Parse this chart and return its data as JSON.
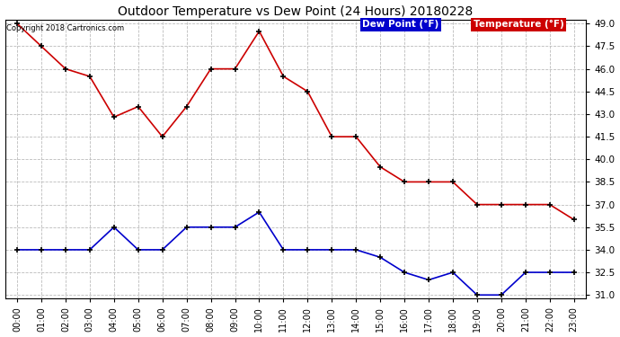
{
  "title": "Outdoor Temperature vs Dew Point (24 Hours) 20180228",
  "copyright": "Copyright 2018 Cartronics.com",
  "x_labels": [
    "00:00",
    "01:00",
    "02:00",
    "03:00",
    "04:00",
    "05:00",
    "06:00",
    "07:00",
    "08:00",
    "09:00",
    "10:00",
    "11:00",
    "12:00",
    "13:00",
    "14:00",
    "15:00",
    "16:00",
    "17:00",
    "18:00",
    "19:00",
    "20:00",
    "21:00",
    "22:00",
    "23:00"
  ],
  "temperature": [
    49.0,
    47.5,
    46.0,
    45.5,
    42.8,
    43.5,
    41.5,
    43.5,
    46.0,
    46.0,
    48.5,
    45.5,
    44.5,
    41.5,
    41.5,
    39.5,
    38.5,
    38.5,
    38.5,
    37.0,
    37.0,
    37.0,
    37.0,
    36.0
  ],
  "dew_point": [
    34.0,
    34.0,
    34.0,
    34.0,
    35.5,
    34.0,
    34.0,
    35.5,
    35.5,
    35.5,
    36.5,
    34.0,
    34.0,
    34.0,
    34.0,
    33.5,
    32.5,
    32.0,
    32.5,
    31.0,
    31.0,
    32.5,
    32.5,
    32.5
  ],
  "temp_color": "#cc0000",
  "dew_color": "#0000cc",
  "bg_color": "#ffffff",
  "grid_color": "#bbbbbb",
  "ylim_min": 31.0,
  "ylim_max": 49.0,
  "ytick_step": 1.5,
  "legend_temp_label": "Temperature (°F)",
  "legend_dew_label": "Dew Point (°F)",
  "legend_bg_dew": "#0000cc",
  "legend_bg_temp": "#cc0000",
  "marker": "+",
  "marker_color": "#000000",
  "marker_size": 5,
  "line_width": 1.2
}
